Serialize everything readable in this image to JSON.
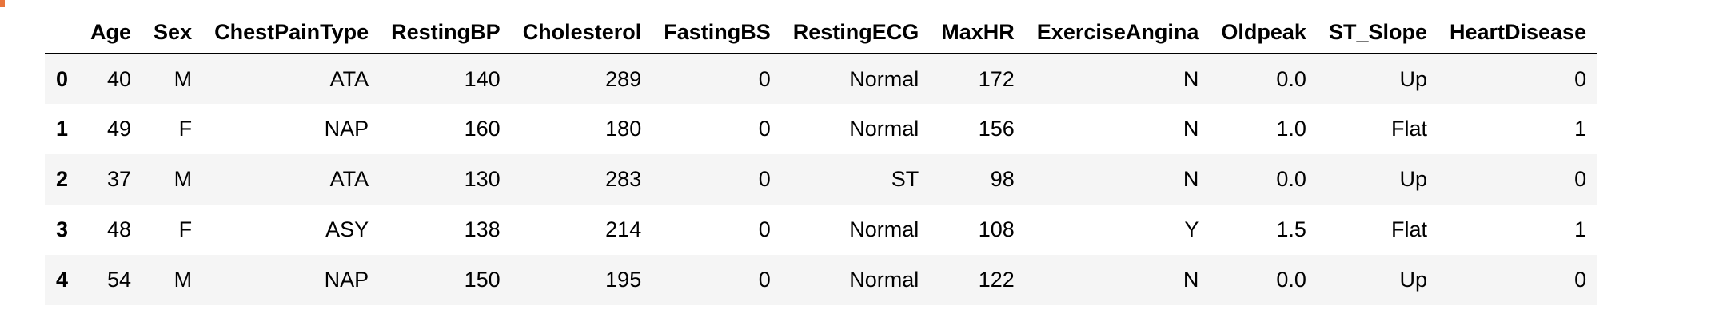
{
  "table": {
    "columns": [
      "",
      "Age",
      "Sex",
      "ChestPainType",
      "RestingBP",
      "Cholesterol",
      "FastingBS",
      "RestingECG",
      "MaxHR",
      "ExerciseAngina",
      "Oldpeak",
      "ST_Slope",
      "HeartDisease"
    ],
    "rows": [
      [
        "0",
        "40",
        "M",
        "ATA",
        "140",
        "289",
        "0",
        "Normal",
        "172",
        "N",
        "0.0",
        "Up",
        "0"
      ],
      [
        "1",
        "49",
        "F",
        "NAP",
        "160",
        "180",
        "0",
        "Normal",
        "156",
        "N",
        "1.0",
        "Flat",
        "1"
      ],
      [
        "2",
        "37",
        "M",
        "ATA",
        "130",
        "283",
        "0",
        "ST",
        "98",
        "N",
        "0.0",
        "Up",
        "0"
      ],
      [
        "3",
        "48",
        "F",
        "ASY",
        "138",
        "214",
        "0",
        "Normal",
        "108",
        "Y",
        "1.5",
        "Flat",
        "1"
      ],
      [
        "4",
        "54",
        "M",
        "NAP",
        "150",
        "195",
        "0",
        "Normal",
        "122",
        "N",
        "0.0",
        "Up",
        "0"
      ]
    ]
  },
  "colors": {
    "cell_marker": "#e8743b",
    "row_stripe": "#f5f5f5"
  }
}
